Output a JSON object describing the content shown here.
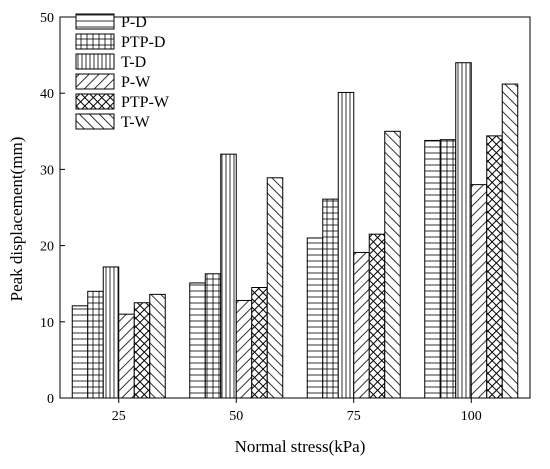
{
  "chart_data": {
    "type": "bar",
    "xlabel": "Normal stress(kPa)",
    "ylabel": "Peak displacement(mm)",
    "categories": [
      "25",
      "50",
      "75",
      "100"
    ],
    "ylim": [
      0,
      50
    ],
    "yticks": [
      0,
      10,
      20,
      30,
      40,
      50
    ],
    "grid": false,
    "legend_position": "top-left",
    "series": [
      {
        "name": "P-D",
        "pattern": "horizontal",
        "values": [
          12.1,
          15.1,
          21.0,
          33.8
        ]
      },
      {
        "name": "PTP-D",
        "pattern": "grid",
        "values": [
          14.0,
          16.3,
          26.1,
          33.9
        ]
      },
      {
        "name": "T-D",
        "pattern": "vertical",
        "values": [
          17.2,
          32.0,
          40.1,
          44.0
        ]
      },
      {
        "name": "P-W",
        "pattern": "diagonal-up",
        "values": [
          11.0,
          12.8,
          19.1,
          28.0
        ]
      },
      {
        "name": "PTP-W",
        "pattern": "diagonal-cross",
        "values": [
          12.5,
          14.5,
          21.5,
          34.4
        ]
      },
      {
        "name": "T-W",
        "pattern": "diagonal-down",
        "values": [
          13.6,
          28.9,
          35.0,
          41.2
        ]
      }
    ]
  }
}
